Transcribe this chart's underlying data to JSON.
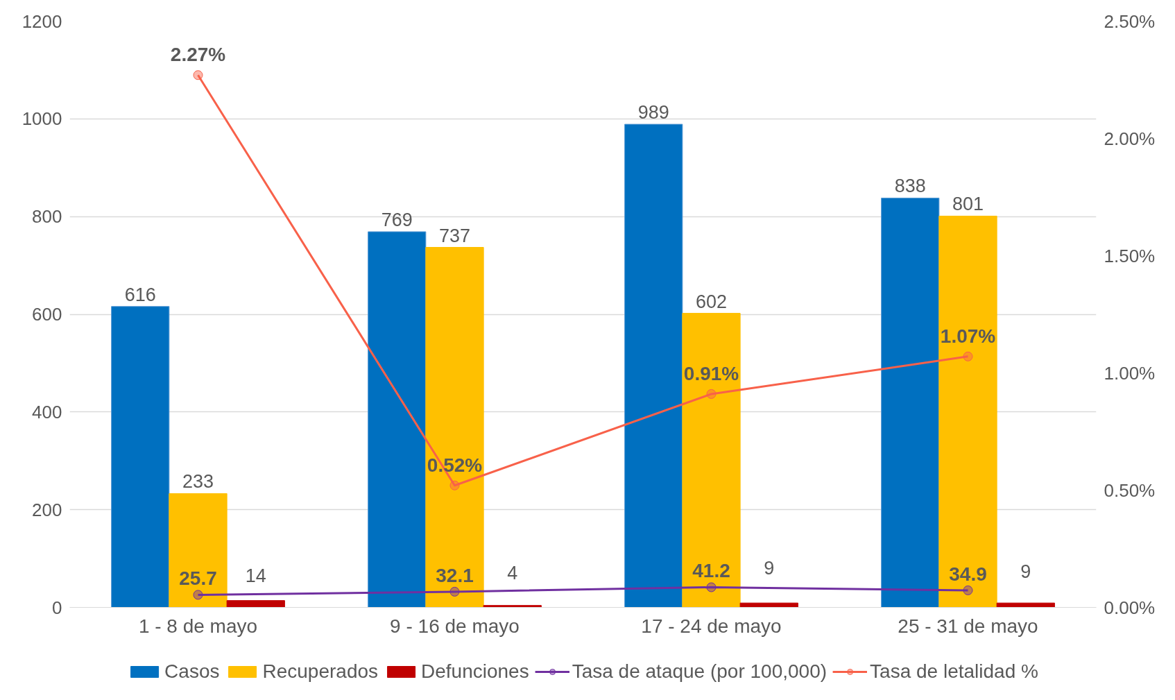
{
  "chart_data": {
    "type": "bar",
    "categories": [
      "1 - 8 de mayo",
      "9 - 16 de mayo",
      "17 - 24 de mayo",
      "25 - 31 de mayo"
    ],
    "series": [
      {
        "name": "Casos",
        "color": "#0070c0",
        "values": [
          616,
          769,
          989,
          838
        ]
      },
      {
        "name": "Recuperados",
        "color": "#ffc000",
        "values": [
          233,
          737,
          602,
          801
        ]
      },
      {
        "name": "Defunciones",
        "color": "#c00000",
        "values": [
          14,
          4,
          9,
          9
        ]
      },
      {
        "name": "Tasa de ataque (por 100,000)",
        "type": "line",
        "color": "#7030a0",
        "values": [
          25.7,
          32.1,
          41.2,
          34.9
        ],
        "value_labels": [
          "25.7",
          "32.1",
          "41.2",
          "34.9"
        ]
      },
      {
        "name": "Tasa de letalidad %",
        "type": "line",
        "axis": "y2",
        "color": "#f8614a",
        "values": [
          2.27,
          0.52,
          0.91,
          1.07
        ],
        "value_labels": [
          "2.27%",
          "0.52%",
          "0.91%",
          "1.07%"
        ]
      }
    ],
    "ylim": [
      0,
      1200
    ],
    "yticks": [
      0,
      200,
      400,
      600,
      800,
      1000,
      1200
    ],
    "y2lim": [
      0,
      2.5
    ],
    "y2ticks": [
      {
        "value": 0,
        "label": "0.00%"
      },
      {
        "value": 0.5,
        "label": "0.50%"
      },
      {
        "value": 1,
        "label": "1.00%"
      },
      {
        "value": 1.5,
        "label": "1.50%"
      },
      {
        "value": 2,
        "label": "2.00%"
      },
      {
        "value": 2.5,
        "label": "2.50%"
      }
    ],
    "data_labels": true,
    "grid": "y",
    "legend": "bottom",
    "marker": "circle",
    "line_style": "solid"
  }
}
